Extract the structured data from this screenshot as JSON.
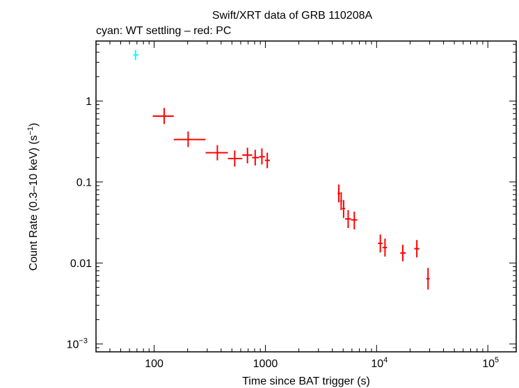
{
  "chart_data": {
    "type": "scatter",
    "title": "Swift/XRT data of GRB 110208A",
    "subtitle": "cyan: WT settling – red: PC",
    "xlabel": "Time since BAT trigger (s)",
    "ylabel": "Count Rate (0.3–10 keV) (s",
    "ylabel_sup": "−1",
    "ylabel_end": ")",
    "xscale": "log",
    "yscale": "log",
    "xlim": [
      30,
      180000
    ],
    "ylim": [
      0.0008,
      5.5
    ],
    "x_ticks": [
      {
        "value": 100,
        "base": "100",
        "exp": ""
      },
      {
        "value": 1000,
        "base": "1000",
        "exp": ""
      },
      {
        "value": 10000,
        "base": "10",
        "exp": "4"
      },
      {
        "value": 100000,
        "base": "10",
        "exp": "5"
      }
    ],
    "y_ticks": [
      {
        "value": 1,
        "base": "1",
        "exp": ""
      },
      {
        "value": 0.1,
        "base": "0.1",
        "exp": ""
      },
      {
        "value": 0.01,
        "base": "0.01",
        "exp": ""
      },
      {
        "value": 0.001,
        "base": "10",
        "exp": "−3"
      }
    ],
    "series": [
      {
        "mode": "WT settling",
        "color": "#00ffff",
        "points": [
          {
            "x": 68,
            "xlo": 65,
            "xhi": 72,
            "y": 3.7,
            "ylo": 3.2,
            "yhi": 4.25
          }
        ]
      },
      {
        "mode": "PC",
        "color": "#ff0000",
        "points": [
          {
            "x": 123,
            "xlo": 97,
            "xhi": 150,
            "y": 0.65,
            "ylo": 0.52,
            "yhi": 0.82
          },
          {
            "x": 202,
            "xlo": 150,
            "xhi": 290,
            "y": 0.335,
            "ylo": 0.27,
            "yhi": 0.42
          },
          {
            "x": 370,
            "xlo": 290,
            "xhi": 460,
            "y": 0.23,
            "ylo": 0.185,
            "yhi": 0.285
          },
          {
            "x": 530,
            "xlo": 460,
            "xhi": 620,
            "y": 0.195,
            "ylo": 0.155,
            "yhi": 0.245
          },
          {
            "x": 690,
            "xlo": 620,
            "xhi": 760,
            "y": 0.215,
            "ylo": 0.17,
            "yhi": 0.265
          },
          {
            "x": 810,
            "xlo": 760,
            "xhi": 880,
            "y": 0.2,
            "ylo": 0.16,
            "yhi": 0.25
          },
          {
            "x": 930,
            "xlo": 880,
            "xhi": 990,
            "y": 0.205,
            "ylo": 0.165,
            "yhi": 0.26
          },
          {
            "x": 1040,
            "xlo": 990,
            "xhi": 1100,
            "y": 0.185,
            "ylo": 0.148,
            "yhi": 0.23
          },
          {
            "x": 4570,
            "xlo": 4450,
            "xhi": 4700,
            "y": 0.072,
            "ylo": 0.056,
            "yhi": 0.093
          },
          {
            "x": 4800,
            "xlo": 4700,
            "xhi": 4900,
            "y": 0.058,
            "ylo": 0.045,
            "yhi": 0.075
          },
          {
            "x": 5050,
            "xlo": 4900,
            "xhi": 5200,
            "y": 0.047,
            "ylo": 0.036,
            "yhi": 0.06
          },
          {
            "x": 5550,
            "xlo": 5200,
            "xhi": 5900,
            "y": 0.035,
            "ylo": 0.027,
            "yhi": 0.045
          },
          {
            "x": 6300,
            "xlo": 5900,
            "xhi": 6700,
            "y": 0.034,
            "ylo": 0.026,
            "yhi": 0.043
          },
          {
            "x": 10800,
            "xlo": 10300,
            "xhi": 11300,
            "y": 0.0175,
            "ylo": 0.0135,
            "yhi": 0.0225
          },
          {
            "x": 11900,
            "xlo": 11300,
            "xhi": 12400,
            "y": 0.0155,
            "ylo": 0.012,
            "yhi": 0.02
          },
          {
            "x": 17200,
            "xlo": 16300,
            "xhi": 18300,
            "y": 0.0133,
            "ylo": 0.0105,
            "yhi": 0.0168
          },
          {
            "x": 23000,
            "xlo": 21800,
            "xhi": 24200,
            "y": 0.015,
            "ylo": 0.0117,
            "yhi": 0.0192
          },
          {
            "x": 29000,
            "xlo": 28000,
            "xhi": 30000,
            "y": 0.0064,
            "ylo": 0.0047,
            "yhi": 0.0087
          }
        ]
      }
    ]
  }
}
